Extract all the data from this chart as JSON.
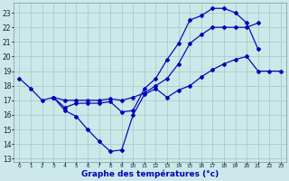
{
  "title": "Graphe des températures (°c)",
  "bg_color": "#cce8e8",
  "grid_color": "#aacccc",
  "line_color": "#0000bb",
  "xlim": [
    -0.5,
    23.5
  ],
  "ylim": [
    12.8,
    23.7
  ],
  "yticks": [
    13,
    14,
    15,
    16,
    17,
    18,
    19,
    20,
    21,
    22,
    23
  ],
  "xticks": [
    0,
    1,
    2,
    3,
    4,
    5,
    6,
    7,
    8,
    9,
    10,
    11,
    12,
    13,
    14,
    15,
    16,
    17,
    18,
    19,
    20,
    21,
    22,
    23
  ],
  "line1_x": [
    0,
    1,
    2,
    3,
    4,
    5,
    6,
    7,
    8,
    9,
    10,
    11,
    12,
    13,
    14,
    15,
    16,
    17,
    18,
    19,
    20,
    21,
    22,
    23
  ],
  "line1_y": [
    18.5,
    17.8,
    17.0,
    17.2,
    16.3,
    15.9,
    15.0,
    14.2,
    13.5,
    13.6,
    16.0,
    17.4,
    17.8,
    17.2,
    17.7,
    18.0,
    18.6,
    19.1,
    19.5,
    19.8,
    20.0,
    19.0,
    19.0,
    19.0
  ],
  "line2_x": [
    3,
    4,
    5,
    6,
    7,
    8,
    9,
    10,
    11,
    12,
    13,
    14,
    15,
    16,
    17,
    18,
    19,
    20,
    21
  ],
  "line2_y": [
    17.2,
    17.0,
    17.0,
    17.0,
    17.0,
    17.1,
    17.0,
    17.2,
    17.5,
    18.0,
    18.5,
    19.5,
    20.9,
    21.5,
    22.0,
    22.0,
    22.0,
    22.0,
    22.3
  ],
  "line3_x": [
    3,
    4,
    5,
    6,
    7,
    8,
    9,
    10,
    11,
    12,
    13,
    14,
    15,
    16,
    17,
    18,
    19,
    20,
    21
  ],
  "line3_y": [
    17.2,
    16.5,
    16.8,
    16.8,
    16.8,
    16.9,
    16.2,
    16.3,
    17.8,
    18.5,
    19.8,
    20.9,
    22.5,
    22.8,
    23.3,
    23.3,
    23.0,
    22.3,
    20.5
  ]
}
